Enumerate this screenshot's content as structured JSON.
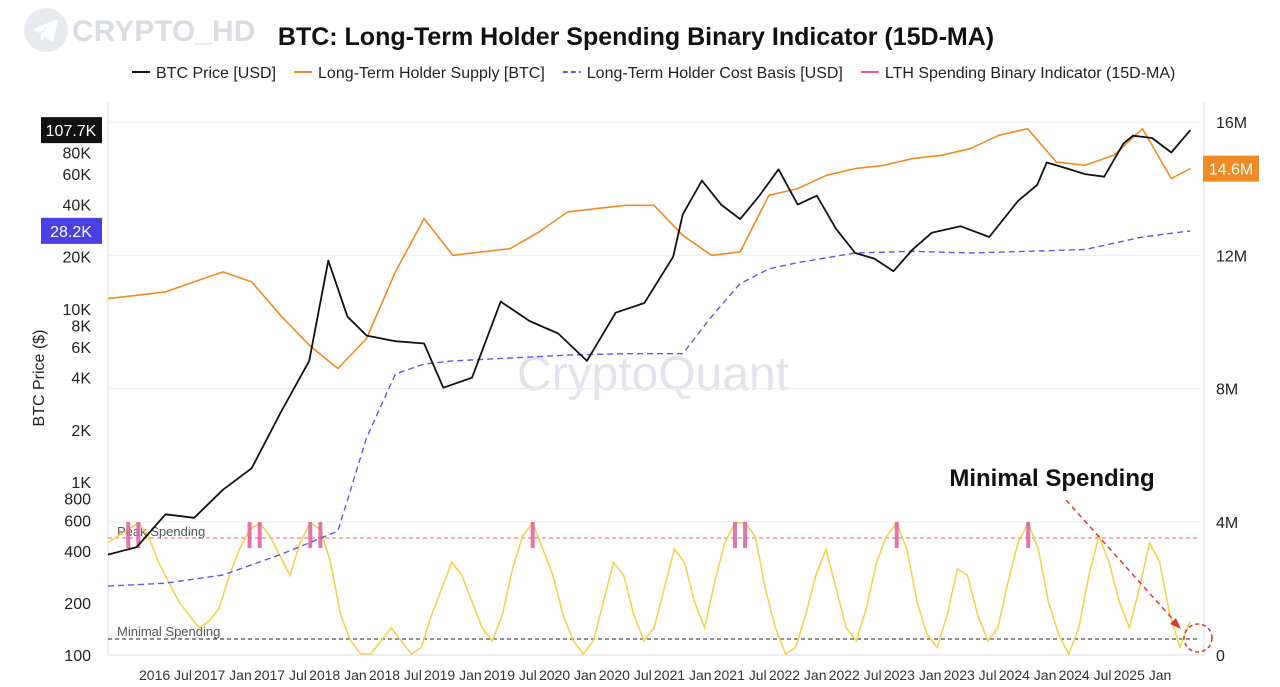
{
  "logo": {
    "text": "CRYPTO_HD",
    "icon": "telegram-icon"
  },
  "watermark": "CryptoQuant",
  "chart_data": {
    "type": "line",
    "title": "BTC: Long-Term Holder Spending Binary Indicator (15D-MA)",
    "ylabel": "BTC Price ($)",
    "y_scale": "log",
    "ylim": [
      100,
      120000
    ],
    "y_ticks": [
      {
        "value": 100,
        "label": "100"
      },
      {
        "value": 200,
        "label": "200"
      },
      {
        "value": 400,
        "label": "400"
      },
      {
        "value": 600,
        "label": "600"
      },
      {
        "value": 800,
        "label": "800"
      },
      {
        "value": 1000,
        "label": "1K"
      },
      {
        "value": 2000,
        "label": "2K"
      },
      {
        "value": 4000,
        "label": "4K"
      },
      {
        "value": 6000,
        "label": "6K"
      },
      {
        "value": 8000,
        "label": "8K"
      },
      {
        "value": 10000,
        "label": "10K"
      },
      {
        "value": 20000,
        "label": "20K"
      },
      {
        "value": 40000,
        "label": "40K"
      },
      {
        "value": 60000,
        "label": "60K"
      },
      {
        "value": 80000,
        "label": "80K"
      }
    ],
    "y2lim": [
      0,
      16000000
    ],
    "y2_ticks": [
      {
        "value": 0,
        "label": "0"
      },
      {
        "value": 4000000,
        "label": "4M"
      },
      {
        "value": 8000000,
        "label": "8M"
      },
      {
        "value": 12000000,
        "label": "12M"
      },
      {
        "value": 16000000,
        "label": "16M"
      }
    ],
    "xlim": [
      "2016-01",
      "2025-07"
    ],
    "x_ticks": [
      "2016 Jul",
      "2017 Jan",
      "2017 Jul",
      "2018 Jan",
      "2018 Jul",
      "2019 Jan",
      "2019 Jul",
      "2020 Jan",
      "2020 Jul",
      "2021 Jan",
      "2021 Jul",
      "2022 Jan",
      "2022 Jul",
      "2023 Jan",
      "2023 Jul",
      "2024 Jan",
      "2024 Jul",
      "2025 Jan"
    ],
    "x_tick_dates": [
      "2016-07",
      "2017-01",
      "2017-07",
      "2018-01",
      "2018-07",
      "2019-01",
      "2019-07",
      "2020-01",
      "2020-07",
      "2021-01",
      "2021-07",
      "2022-01",
      "2022-07",
      "2023-01",
      "2023-07",
      "2024-01",
      "2024-07",
      "2025-01"
    ],
    "legend_position": "top",
    "grid": true,
    "current_values": [
      {
        "label": "107.7K",
        "value": 107700,
        "axis": "left",
        "color": "#111111"
      },
      {
        "label": "28.2K",
        "value": 28200,
        "axis": "left",
        "color": "#4a3fe0"
      },
      {
        "label": "14.6M",
        "value": 14600000,
        "axis": "right",
        "color": "#f08a24"
      }
    ],
    "bands": [
      {
        "label": "Peak Spending",
        "color": "#e0607e"
      },
      {
        "label": "Minimal Spending",
        "color": "#222222"
      }
    ],
    "annotation": "Minimal Spending",
    "series": [
      {
        "name": "BTC Price [USD]",
        "axis": "left",
        "color": "#111111",
        "style": "solid",
        "x": [
          "2016-01",
          "2016-04",
          "2016-07",
          "2016-10",
          "2017-01",
          "2017-04",
          "2017-07",
          "2017-10",
          "2017-12",
          "2018-02",
          "2018-04",
          "2018-07",
          "2018-10",
          "2018-12",
          "2019-03",
          "2019-06",
          "2019-09",
          "2019-12",
          "2020-03",
          "2020-06",
          "2020-09",
          "2020-12",
          "2021-01",
          "2021-03",
          "2021-05",
          "2021-07",
          "2021-09",
          "2021-11",
          "2022-01",
          "2022-03",
          "2022-05",
          "2022-07",
          "2022-09",
          "2022-11",
          "2023-01",
          "2023-03",
          "2023-06",
          "2023-09",
          "2023-12",
          "2024-02",
          "2024-03",
          "2024-05",
          "2024-07",
          "2024-09",
          "2024-11",
          "2024-12",
          "2025-02",
          "2025-04",
          "2025-06"
        ],
        "values": [
          380,
          420,
          650,
          620,
          900,
          1200,
          2500,
          5000,
          19000,
          9000,
          7000,
          6500,
          6300,
          3500,
          4000,
          11000,
          8500,
          7200,
          5000,
          9500,
          10800,
          20000,
          35000,
          55000,
          40000,
          33000,
          45000,
          64000,
          40000,
          45000,
          29000,
          21000,
          19500,
          16500,
          22000,
          27500,
          30000,
          26000,
          42000,
          52000,
          70000,
          65000,
          60000,
          58000,
          90000,
          100000,
          97000,
          80000,
          107700
        ]
      },
      {
        "name": "Long-Term Holder Supply [BTC]",
        "axis": "right",
        "color": "#f08a24",
        "style": "solid",
        "x": [
          "2016-01",
          "2016-07",
          "2017-01",
          "2017-04",
          "2017-07",
          "2017-10",
          "2018-01",
          "2018-04",
          "2018-07",
          "2018-10",
          "2019-01",
          "2019-04",
          "2019-07",
          "2019-10",
          "2020-01",
          "2020-04",
          "2020-07",
          "2020-10",
          "2021-01",
          "2021-04",
          "2021-07",
          "2021-10",
          "2022-01",
          "2022-04",
          "2022-07",
          "2022-10",
          "2023-01",
          "2023-04",
          "2023-07",
          "2023-10",
          "2024-01",
          "2024-04",
          "2024-07",
          "2024-10",
          "2025-01",
          "2025-04",
          "2025-06"
        ],
        "values": [
          10700000,
          10900000,
          11500000,
          11200000,
          10200000,
          9300000,
          8600000,
          9500000,
          11500000,
          13100000,
          12000000,
          12100000,
          12200000,
          12700000,
          13300000,
          13400000,
          13500000,
          13500000,
          12600000,
          12000000,
          12100000,
          13800000,
          14000000,
          14400000,
          14600000,
          14700000,
          14900000,
          15000000,
          15200000,
          15600000,
          15800000,
          14800000,
          14700000,
          15000000,
          15800000,
          14300000,
          14600000
        ]
      },
      {
        "name": "Long-Term Holder Cost Basis [USD]",
        "axis": "left",
        "color": "#5a5ae6",
        "style": "dashed",
        "x": [
          "2016-01",
          "2016-07",
          "2017-01",
          "2017-07",
          "2018-01",
          "2018-04",
          "2018-07",
          "2018-10",
          "2019-01",
          "2019-07",
          "2020-01",
          "2020-07",
          "2021-01",
          "2021-04",
          "2021-07",
          "2021-10",
          "2022-01",
          "2022-07",
          "2023-01",
          "2023-07",
          "2024-01",
          "2024-07",
          "2025-01",
          "2025-06"
        ],
        "values": [
          250,
          260,
          290,
          380,
          520,
          1800,
          4200,
          4800,
          5000,
          5200,
          5400,
          5500,
          5500,
          9000,
          14000,
          17000,
          18500,
          21000,
          21500,
          21000,
          21500,
          22000,
          26000,
          28200
        ]
      },
      {
        "name": "LTH Spending Binary Indicator (15D-MA)",
        "axis": "band",
        "color": "#e05ca0",
        "style": "solid",
        "fill_color": "#f2d34f",
        "values": [
          0.85,
          0.9,
          0.95,
          1,
          0.9,
          0.7,
          0.55,
          0.4,
          0.3,
          0.2,
          0.25,
          0.35,
          0.6,
          0.8,
          0.95,
          1,
          0.9,
          0.75,
          0.6,
          0.85,
          1,
          0.95,
          0.7,
          0.3,
          0.1,
          0,
          0,
          0.1,
          0.2,
          0.1,
          0,
          0.05,
          0.3,
          0.5,
          0.7,
          0.6,
          0.4,
          0.2,
          0.1,
          0.3,
          0.65,
          0.9,
          1,
          0.8,
          0.6,
          0.3,
          0.1,
          0,
          0.1,
          0.4,
          0.7,
          0.6,
          0.3,
          0.1,
          0.2,
          0.5,
          0.8,
          0.7,
          0.4,
          0.2,
          0.55,
          0.85,
          1,
          1,
          0.9,
          0.5,
          0.2,
          0,
          0.05,
          0.3,
          0.6,
          0.8,
          0.5,
          0.2,
          0.1,
          0.35,
          0.7,
          0.9,
          1,
          0.8,
          0.4,
          0.15,
          0.05,
          0.3,
          0.65,
          0.6,
          0.3,
          0.1,
          0.2,
          0.55,
          0.85,
          1,
          0.8,
          0.4,
          0.15,
          0,
          0.2,
          0.6,
          0.9,
          0.7,
          0.4,
          0.2,
          0.5,
          0.85,
          0.7,
          0.3,
          0.05,
          0.25
        ]
      }
    ]
  }
}
